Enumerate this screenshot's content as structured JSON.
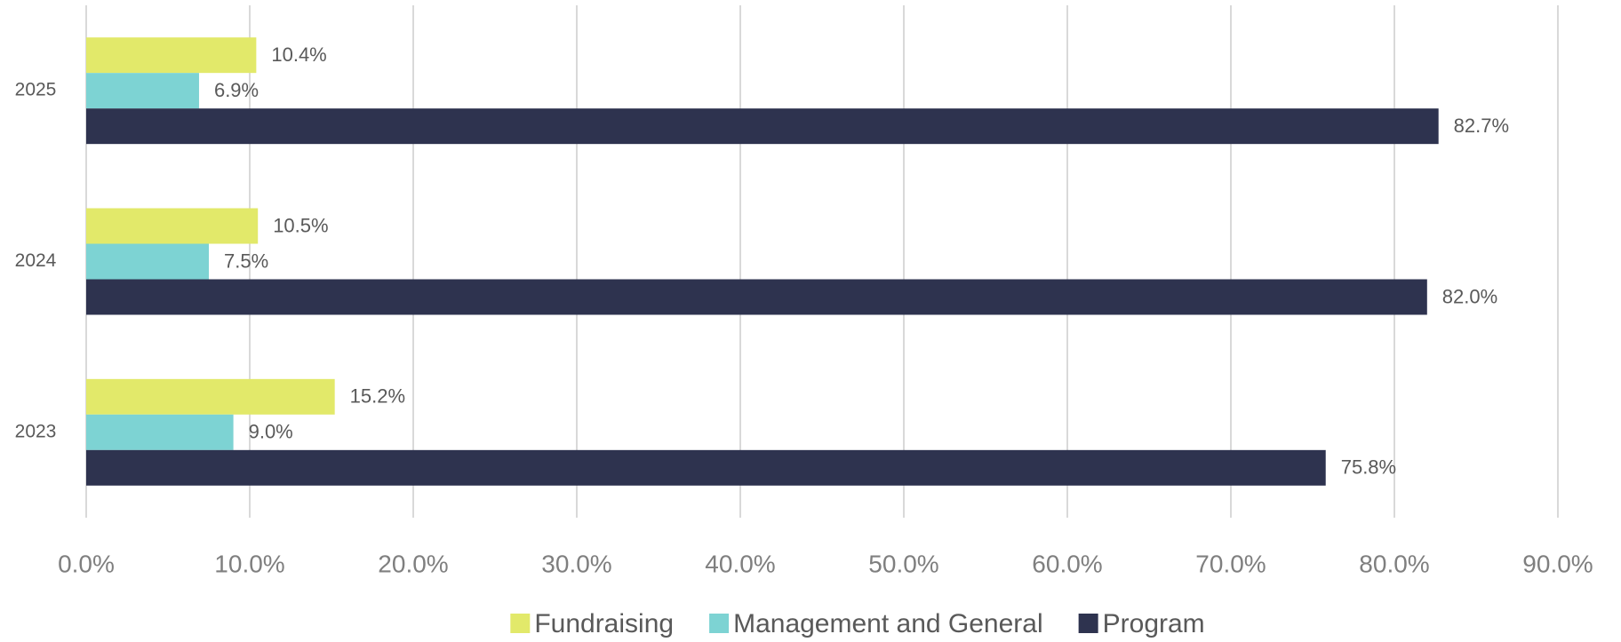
{
  "chart_data": {
    "type": "hbar",
    "categories": [
      "2023",
      "2024",
      "2025"
    ],
    "series": [
      {
        "name": "Fundraising",
        "color": "#e2e96a",
        "values": [
          15.2,
          10.5,
          10.4
        ],
        "value_labels": [
          "15.2%",
          "10.5%",
          "10.4%"
        ]
      },
      {
        "name": "Management and General",
        "color": "#7dd3d3",
        "values": [
          9.0,
          7.5,
          6.9
        ],
        "value_labels": [
          "9.0%",
          "7.5%",
          "6.9%"
        ]
      },
      {
        "name": "Program",
        "color": "#2e334f",
        "values": [
          75.8,
          82.0,
          82.7
        ],
        "value_labels": [
          "75.8%",
          "82.0%",
          "82.7%"
        ]
      }
    ],
    "xlim": [
      0,
      90
    ],
    "xticks": [
      {
        "value": 0,
        "label": "0.0%"
      },
      {
        "value": 10,
        "label": "10.0%"
      },
      {
        "value": 20,
        "label": "20.0%"
      },
      {
        "value": 30,
        "label": "30.0%"
      },
      {
        "value": 40,
        "label": "40.0%"
      },
      {
        "value": 50,
        "label": "50.0%"
      },
      {
        "value": 60,
        "label": "60.0%"
      },
      {
        "value": 70,
        "label": "70.0%"
      },
      {
        "value": 80,
        "label": "80.0%"
      },
      {
        "value": 90,
        "label": "90.0%"
      }
    ],
    "grid": true,
    "legend": "bottom"
  }
}
